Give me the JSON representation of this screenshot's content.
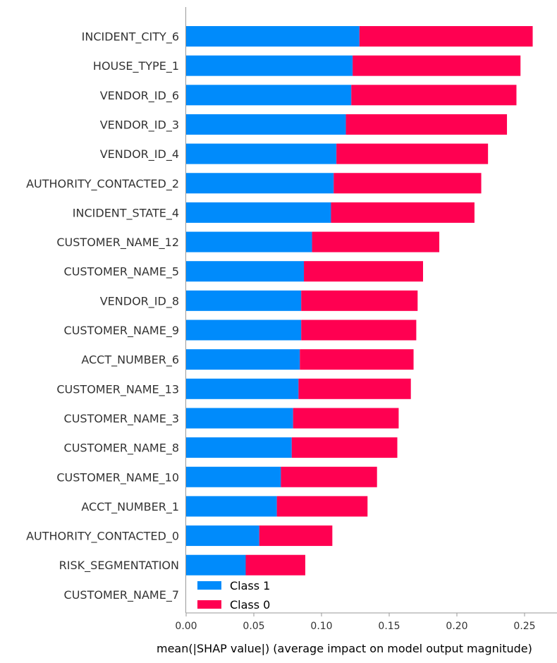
{
  "chart_data": {
    "type": "bar",
    "stacked": true,
    "orientation": "horizontal",
    "title": "",
    "xlabel": "mean(|SHAP value|) (average impact on model output magnitude)",
    "ylabel": "",
    "xlim": [
      0,
      0.27
    ],
    "xticks": [
      "0.00",
      "0.05",
      "0.10",
      "0.15",
      "0.20",
      "0.25"
    ],
    "xtick_values": [
      0,
      0.05,
      0.1,
      0.15,
      0.2,
      0.25
    ],
    "legend_position": "lower-left",
    "categories": [
      "INCIDENT_CITY_6",
      "HOUSE_TYPE_1",
      "VENDOR_ID_6",
      "VENDOR_ID_3",
      "VENDOR_ID_4",
      "AUTHORITY_CONTACTED_2",
      "INCIDENT_STATE_4",
      "CUSTOMER_NAME_12",
      "CUSTOMER_NAME_5",
      "VENDOR_ID_8",
      "CUSTOMER_NAME_9",
      "ACCT_NUMBER_6",
      "CUSTOMER_NAME_13",
      "CUSTOMER_NAME_3",
      "CUSTOMER_NAME_8",
      "CUSTOMER_NAME_10",
      "ACCT_NUMBER_1",
      "AUTHORITY_CONTACTED_0",
      "RISK_SEGMENTATION",
      "CUSTOMER_NAME_7"
    ],
    "series": [
      {
        "name": "Class 1",
        "color": "#008bfb",
        "values": [
          0.128,
          0.123,
          0.122,
          0.118,
          0.111,
          0.109,
          0.107,
          0.093,
          0.087,
          0.085,
          0.085,
          0.084,
          0.083,
          0.079,
          0.078,
          0.07,
          0.067,
          0.054,
          0.044,
          0.0
        ]
      },
      {
        "name": "Class 0",
        "color": "#ff0051",
        "values": [
          0.128,
          0.124,
          0.122,
          0.119,
          0.112,
          0.109,
          0.106,
          0.094,
          0.088,
          0.086,
          0.085,
          0.084,
          0.083,
          0.078,
          0.078,
          0.071,
          0.067,
          0.054,
          0.044,
          0.0
        ]
      }
    ],
    "legend": [
      "Class 1",
      "Class 0"
    ]
  }
}
